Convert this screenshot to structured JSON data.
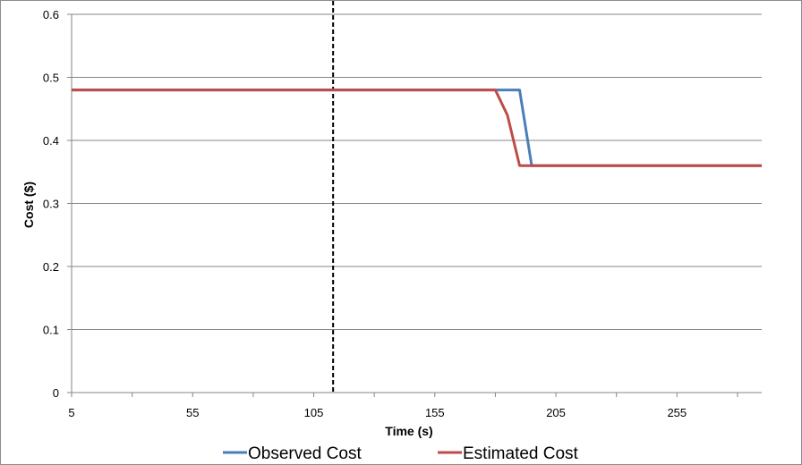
{
  "chart_data": {
    "type": "line",
    "xlabel": "Time (s)",
    "ylabel": "Cost ($)",
    "xlim": [
      5,
      290
    ],
    "ylim": [
      0,
      0.6
    ],
    "x_ticks": [
      5,
      55,
      105,
      155,
      205,
      255
    ],
    "y_ticks": [
      "0",
      "0.1",
      "0.2",
      "0.3",
      "0.4",
      "0.5",
      "0.6"
    ],
    "grid": "horizontal",
    "legend_position": "bottom",
    "vertical_marker": {
      "x": 113,
      "style": "dashed"
    },
    "series": [
      {
        "name": "Observed Cost",
        "color": "#4a7ebb",
        "points": [
          [
            5,
            0.48
          ],
          [
            180,
            0.48
          ],
          [
            190,
            0.48
          ],
          [
            195,
            0.36
          ],
          [
            290,
            0.36
          ]
        ]
      },
      {
        "name": "Estimated Cost",
        "color": "#be4b48",
        "points": [
          [
            5,
            0.48
          ],
          [
            180,
            0.48
          ],
          [
            185,
            0.44
          ],
          [
            190,
            0.36
          ],
          [
            290,
            0.36
          ]
        ]
      }
    ]
  }
}
